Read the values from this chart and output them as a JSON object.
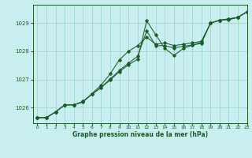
{
  "xlabel": "Graphe pression niveau de la mer (hPa)",
  "bg_color": "#c8eef0",
  "grid_color": "#98d4c8",
  "line_color": "#1a5c2a",
  "ylim": [
    1025.45,
    1029.65
  ],
  "xlim": [
    -0.5,
    23
  ],
  "yticks": [
    1026,
    1027,
    1028,
    1029
  ],
  "xticks": [
    0,
    1,
    2,
    3,
    4,
    5,
    6,
    7,
    8,
    9,
    10,
    11,
    12,
    13,
    14,
    15,
    16,
    17,
    18,
    19,
    20,
    21,
    22,
    23
  ],
  "series": [
    [
      1025.65,
      1025.65,
      1025.85,
      1026.1,
      1026.1,
      1026.2,
      1026.5,
      1026.8,
      1027.2,
      1027.7,
      1028.0,
      1028.2,
      1028.5,
      1028.25,
      1028.3,
      1028.2,
      1028.25,
      1028.3,
      1028.35,
      1029.0,
      1029.1,
      1029.15,
      1029.2,
      1029.4
    ],
    [
      1025.65,
      1025.65,
      1025.85,
      1026.1,
      1026.1,
      1026.22,
      1026.48,
      1026.72,
      1026.98,
      1027.28,
      1027.52,
      1027.72,
      1029.08,
      1028.58,
      1028.1,
      1027.85,
      1028.1,
      1028.22,
      1028.28,
      1029.0,
      1029.1,
      1029.15,
      1029.2,
      1029.4
    ],
    [
      1025.65,
      1025.65,
      1025.85,
      1026.1,
      1026.1,
      1026.22,
      1026.48,
      1026.72,
      1027.02,
      1027.32,
      1027.58,
      1027.82,
      1028.72,
      1028.2,
      1028.2,
      1028.12,
      1028.18,
      1028.22,
      1028.32,
      1029.0,
      1029.1,
      1029.12,
      1029.2,
      1029.4
    ]
  ]
}
